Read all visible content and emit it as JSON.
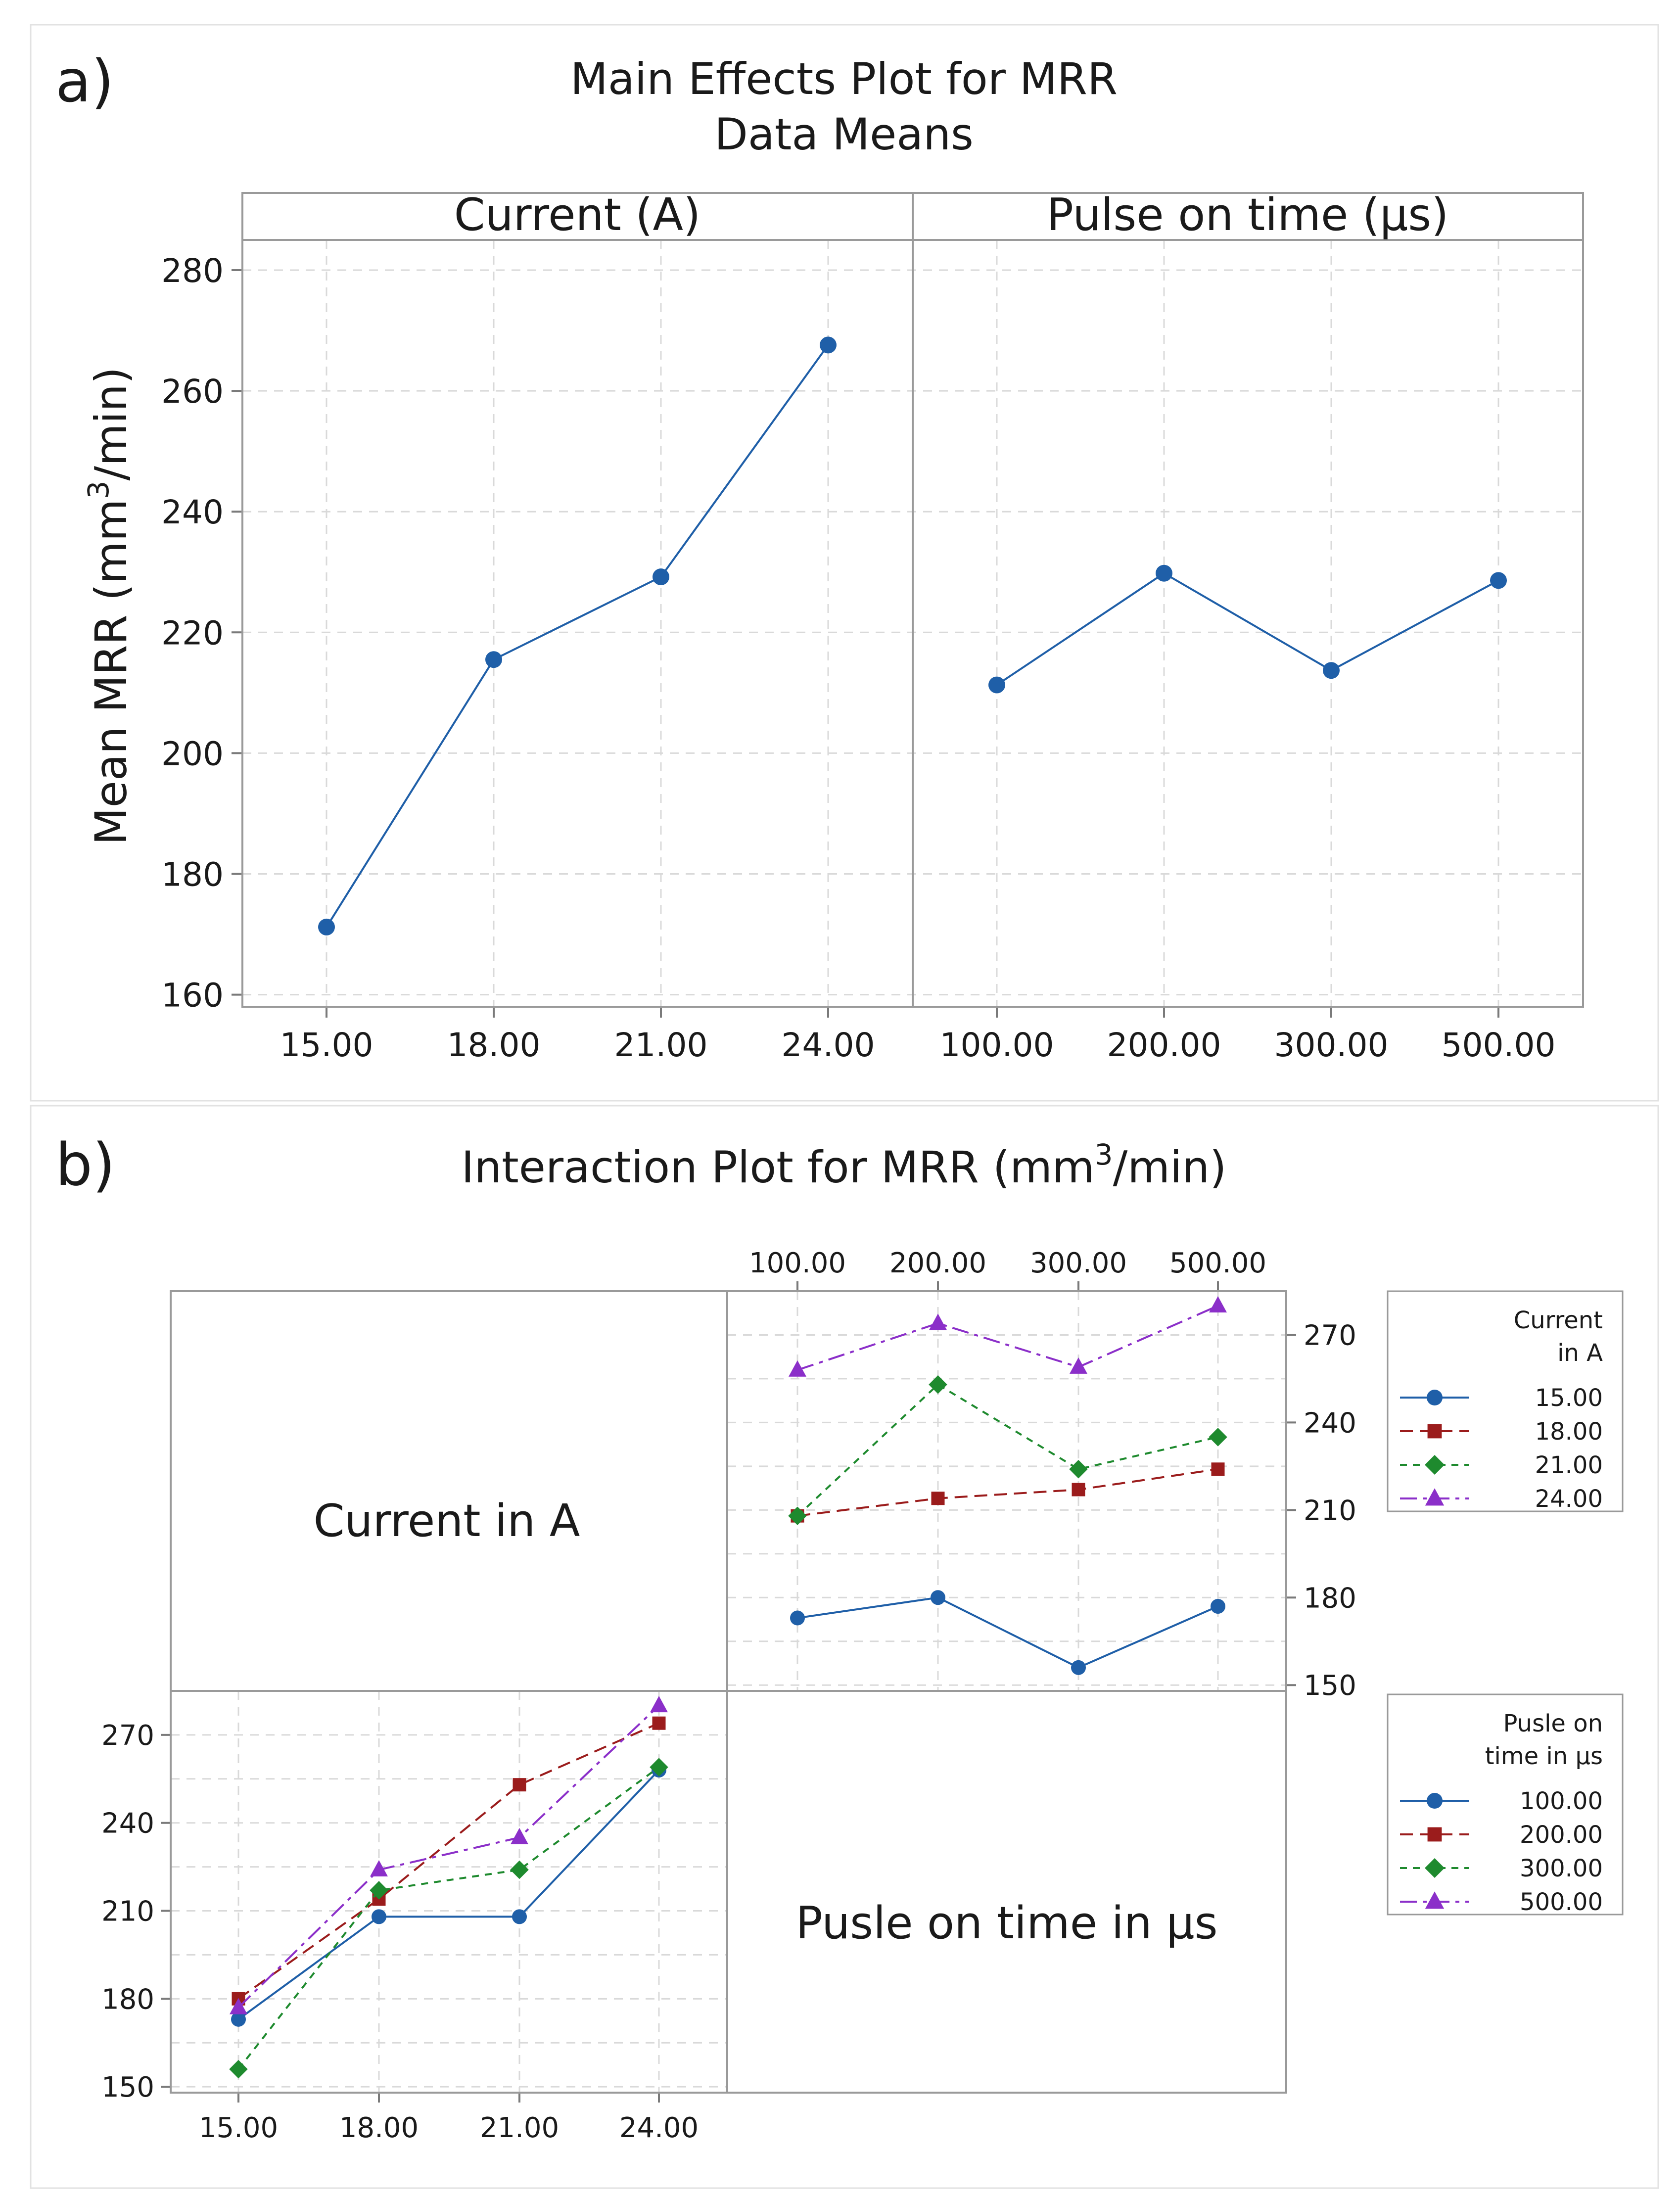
{
  "figure": {
    "panel_a_label": "a)",
    "panel_b_label": "b)"
  },
  "chart_data": [
    {
      "type": "line",
      "panel": "a",
      "title": "Main Effects Plot for MRR",
      "subtitle": "Data Means",
      "ylabel_parts": [
        "Mean MRR (mm",
        "3",
        "/min)"
      ],
      "ylim": [
        158,
        285
      ],
      "yticks": [
        160,
        180,
        200,
        220,
        240,
        260,
        280
      ],
      "color": "#1f5fa8",
      "facets": [
        {
          "header": "Current (A)",
          "categories": [
            "15.00",
            "18.00",
            "21.00",
            "24.00"
          ],
          "values": [
            171.2,
            215.5,
            229.2,
            267.6
          ]
        },
        {
          "header": "Pulse on time (µs)",
          "categories": [
            "100.00",
            "200.00",
            "300.00",
            "500.00"
          ],
          "values": [
            211.3,
            229.8,
            213.7,
            228.6
          ]
        }
      ]
    },
    {
      "type": "line",
      "panel": "b",
      "title_parts": [
        "Interaction Plot for MRR (mm",
        "3",
        "/min)"
      ],
      "ylim": [
        148,
        285
      ],
      "yticks": [
        150,
        180,
        210,
        240,
        270
      ],
      "diagonal_labels": [
        "Current in A",
        "Pusle on time in µs"
      ],
      "top_right": {
        "x_categories": [
          "100.00",
          "200.00",
          "300.00",
          "500.00"
        ],
        "legend_title": [
          "Current",
          "in A"
        ],
        "series": [
          {
            "name": "15.00",
            "color": "#1f5fa8",
            "marker": "circle",
            "dash": "none",
            "values": [
              173,
              180,
              156,
              177
            ]
          },
          {
            "name": "18.00",
            "color": "#9b1c1c",
            "marker": "square",
            "dash": "long",
            "values": [
              208,
              214,
              217,
              224
            ]
          },
          {
            "name": "21.00",
            "color": "#1e8a2e",
            "marker": "diamond",
            "dash": "short",
            "values": [
              208,
              253,
              224,
              235
            ]
          },
          {
            "name": "24.00",
            "color": "#8b2fc9",
            "marker": "triangle",
            "dash": "dashdot",
            "values": [
              258,
              274,
              259,
              280
            ]
          }
        ]
      },
      "bottom_left": {
        "x_categories": [
          "15.00",
          "18.00",
          "21.00",
          "24.00"
        ],
        "legend_title": [
          "Pusle on",
          "time in µs"
        ],
        "series": [
          {
            "name": "100.00",
            "color": "#1f5fa8",
            "marker": "circle",
            "dash": "none",
            "values": [
              173,
              208,
              208,
              258
            ]
          },
          {
            "name": "200.00",
            "color": "#9b1c1c",
            "marker": "square",
            "dash": "long",
            "values": [
              180,
              214,
              253,
              274
            ]
          },
          {
            "name": "300.00",
            "color": "#1e8a2e",
            "marker": "diamond",
            "dash": "short",
            "values": [
              156,
              217,
              224,
              259
            ]
          },
          {
            "name": "500.00",
            "color": "#8b2fc9",
            "marker": "triangle",
            "dash": "dashdot",
            "values": [
              177,
              224,
              235,
              280
            ]
          }
        ]
      }
    }
  ]
}
